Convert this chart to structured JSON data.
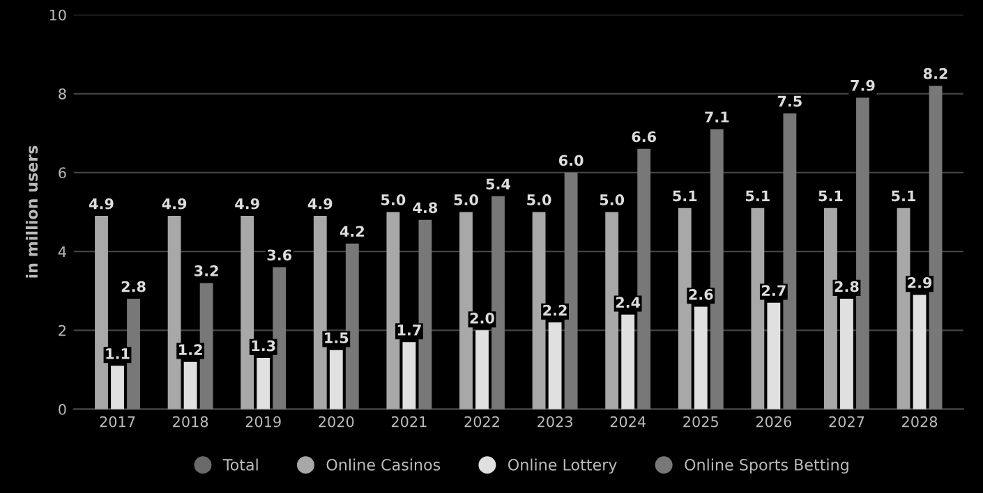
{
  "chart_data": {
    "type": "bar",
    "ylabel": "in million users",
    "categories": [
      "2017",
      "2018",
      "2019",
      "2020",
      "2021",
      "2022",
      "2023",
      "2024",
      "2025",
      "2026",
      "2027",
      "2028"
    ],
    "series": [
      {
        "name": "Total",
        "color": "#6a6a6a",
        "values": [
          null,
          null,
          null,
          null,
          null,
          null,
          null,
          null,
          null,
          null,
          null,
          null
        ]
      },
      {
        "name": "Online Casinos",
        "color": "#a8a8a8",
        "values": [
          4.9,
          4.9,
          4.9,
          4.9,
          5.0,
          5.0,
          5.0,
          5.0,
          5.1,
          5.1,
          5.1,
          5.1
        ],
        "value_labels": [
          "4.9",
          "4.9",
          "4.9",
          "4.9",
          "5.0",
          "5.0",
          "5.0",
          "5.0",
          "5.1",
          "5.1",
          "5.1",
          "5.1"
        ]
      },
      {
        "name": "Online Lottery",
        "color": "#e0e0e0",
        "values": [
          1.1,
          1.2,
          1.3,
          1.5,
          1.7,
          2.0,
          2.2,
          2.4,
          2.6,
          2.7,
          2.8,
          2.9
        ],
        "value_labels": [
          "1.1",
          "1.2",
          "1.3",
          "1.5",
          "1.7",
          "2.0",
          "2.2",
          "2.4",
          "2.6",
          "2.7",
          "2.8",
          "2.9"
        ]
      },
      {
        "name": "Online Sports Betting",
        "color": "#787878",
        "values": [
          2.8,
          3.2,
          3.6,
          4.2,
          4.8,
          5.4,
          6.0,
          6.6,
          7.1,
          7.5,
          7.9,
          8.2
        ],
        "value_labels": [
          "2.8",
          "3.2",
          "3.6",
          "4.2",
          "4.8",
          "5.4",
          "6.0",
          "6.6",
          "7.1",
          "7.5",
          "7.9",
          "8.2"
        ]
      }
    ],
    "ylim": [
      0,
      10
    ],
    "yticks": [
      0,
      2,
      4,
      6,
      8,
      10
    ],
    "grid": "y",
    "legend": "bottom"
  }
}
